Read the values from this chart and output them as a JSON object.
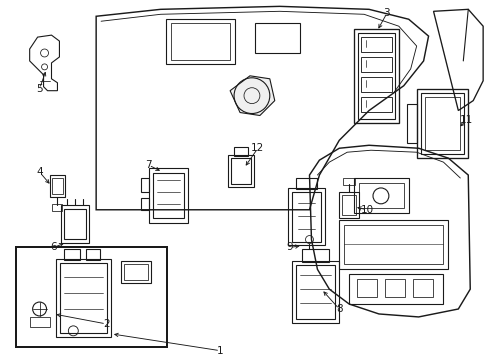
{
  "background_color": "#ffffff",
  "line_color": "#1a1a1a",
  "line_width": 0.8,
  "fig_width": 4.89,
  "fig_height": 3.6,
  "dpi": 100
}
